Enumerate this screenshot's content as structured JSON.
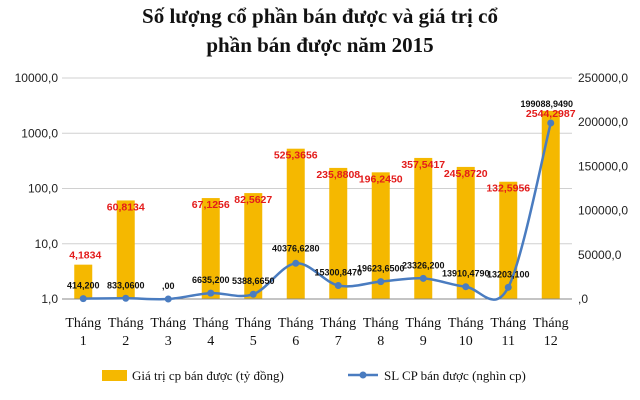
{
  "chart_data": {
    "type": "bar",
    "title_lines": [
      "Số lượng cổ phần bán được và giá trị cổ",
      "phần bán được năm 2015"
    ],
    "categories": [
      [
        "Tháng",
        "1"
      ],
      [
        "Tháng",
        "2"
      ],
      [
        "Tháng",
        "3"
      ],
      [
        "Tháng",
        "4"
      ],
      [
        "Tháng",
        "5"
      ],
      [
        "Tháng",
        "6"
      ],
      [
        "Tháng",
        "7"
      ],
      [
        "Tháng",
        "8"
      ],
      [
        "Tháng",
        "9"
      ],
      [
        "Tháng",
        "10"
      ],
      [
        "Tháng",
        "11"
      ],
      [
        "Tháng",
        "12"
      ]
    ],
    "y_left": {
      "scale": "log",
      "ylim": [
        1,
        10000
      ],
      "ticks": [
        "1,0",
        "10,0",
        "100,0",
        "1000,0",
        "10000,0"
      ]
    },
    "y_right": {
      "scale": "linear",
      "ylim": [
        0,
        250000
      ],
      "ticks": [
        ",0",
        "50000,0",
        "100000,0",
        "150000,0",
        "200000,0",
        "250000,0"
      ]
    },
    "series": [
      {
        "name": "Giá trị cp bán được (tỷ đồng)",
        "type": "bar",
        "axis": "left",
        "color": "#f5b800",
        "values": [
          4.1834,
          60.8134,
          null,
          67.1256,
          82.5627,
          525.3656,
          235.8808,
          196.245,
          357.5417,
          245.872,
          132.5956,
          2544.2987
        ],
        "labels": [
          "4,1834",
          "60,8134",
          "",
          "67,1256",
          "82,5627",
          "525,3656",
          "235,8808",
          "196,2450",
          "357,5417",
          "245,8720",
          "132,5956",
          "2544,2987"
        ]
      },
      {
        "name": "SL CP bán được (nghìn cp)",
        "type": "line",
        "axis": "right",
        "color": "#4a7cc0",
        "values": [
          414.2,
          833.06,
          0,
          6635.2,
          5388.665,
          40376.628,
          15300.847,
          19623.65,
          23326.2,
          13910.479,
          13203.1,
          199088.949
        ],
        "labels": [
          "414,200",
          "833,0600",
          ",00",
          "6635,200",
          "5388,6650",
          "40376,6280",
          "15300,8470",
          "19623,6500",
          "23326,200",
          "13910,4790",
          "13203,100",
          "199088,9490"
        ]
      }
    ],
    "grid": true,
    "legend": "bottom"
  }
}
